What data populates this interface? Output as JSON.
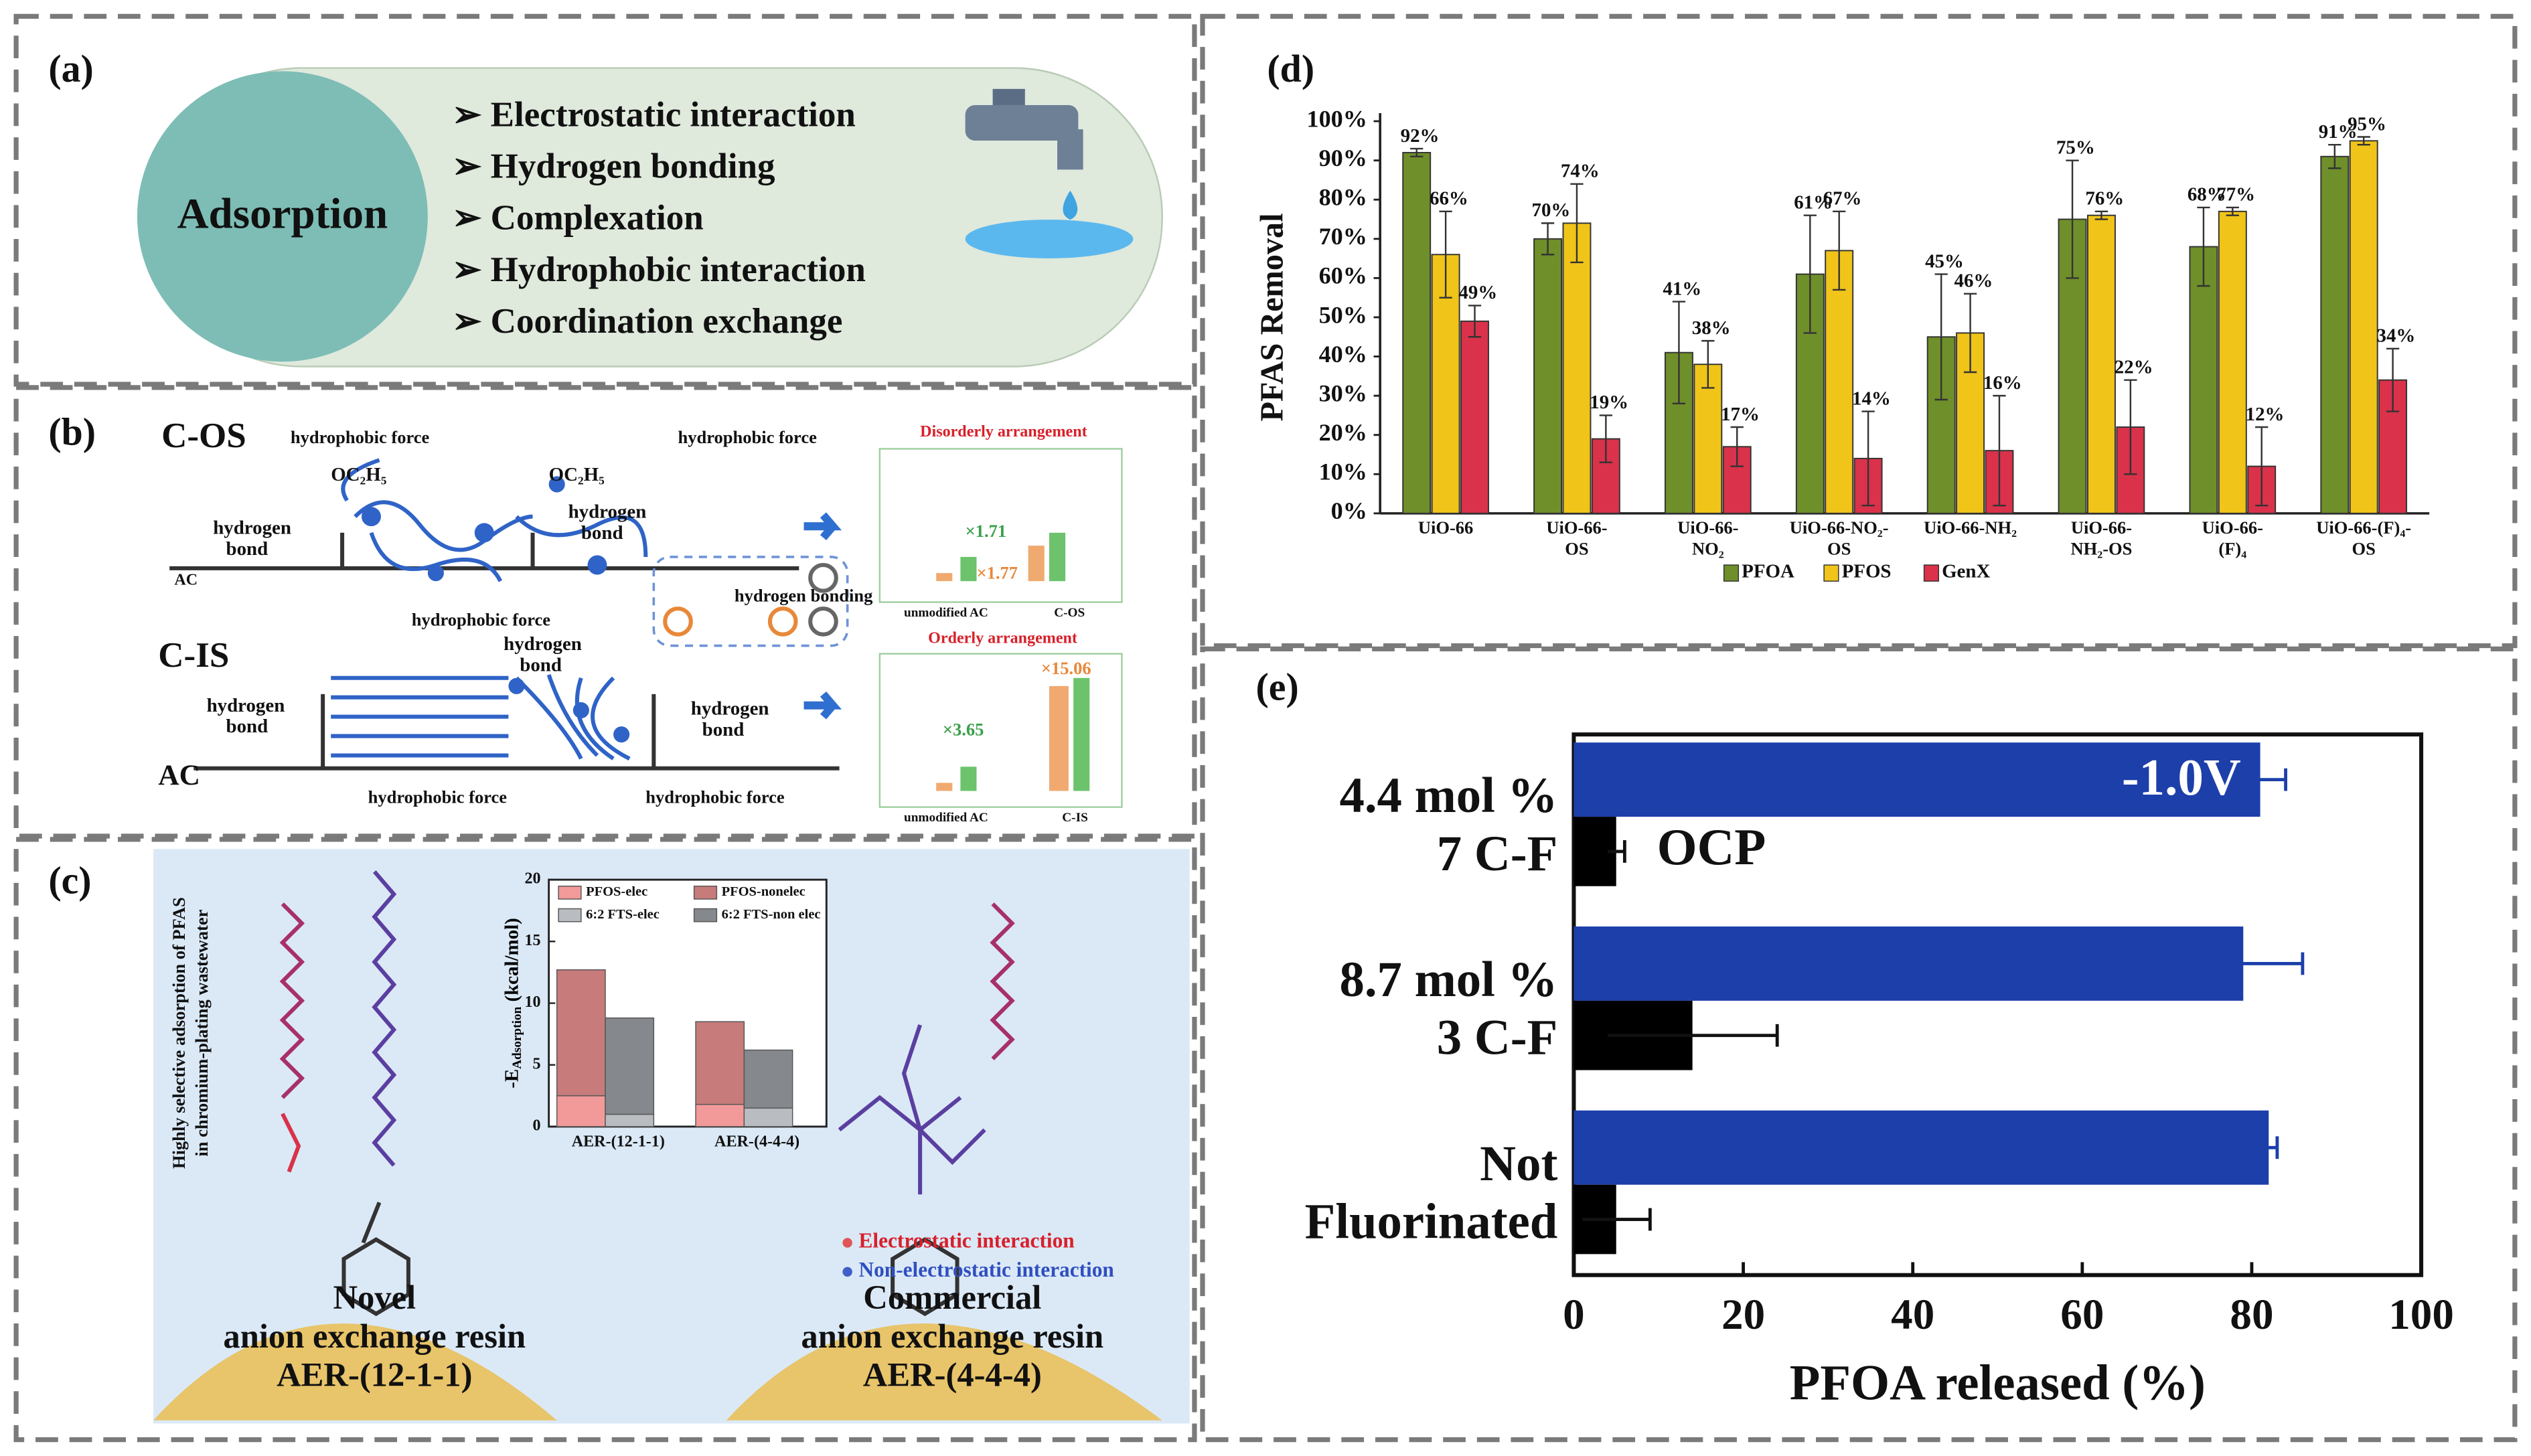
{
  "panel_a": {
    "label": "(a)",
    "center": "Adsorption",
    "items": [
      "➢ Electrostatic interaction",
      "➢ Hydrogen bonding",
      "➢ Complexation",
      "➢ Hydrophobic interaction",
      "➢ Coordination exchange"
    ]
  },
  "panel_b": {
    "label": "(b)",
    "texts": [
      "C-OS",
      "C-IS",
      "hydrophobic force",
      "hydrophobic force",
      "OC₂H₅",
      "OC₂H₅",
      "hydrogen",
      "bond",
      "hydrogen",
      "bond",
      "AC",
      "hydrophobic force",
      "hydrogen bonding",
      "hydrogen",
      "bond",
      "hydrogen",
      "bond",
      "hydrogen",
      "bond",
      "AC",
      "hydrophobic force",
      "hydrophobic force",
      "Disorderly arrangement",
      "Orderly arrangement",
      "×1.71",
      "×1.77",
      "×3.65",
      "×15.06",
      "unmodified AC",
      "C-OS",
      "unmodified AC",
      "C-IS"
    ]
  },
  "panel_c": {
    "label": "(c)",
    "texts": [
      "Highly selective adsorption of PFAS",
      "in chromium-plating wastewater",
      "Electrostatic interaction",
      "Non-electrostatic interaction",
      "Novel",
      "anion exchange resin",
      "AER-(12-1-1)",
      "Commercial",
      "anion exchange resin",
      "AER-(4-4-4)"
    ]
  },
  "chart_data": [
    {
      "type": "stacked_bar",
      "ylabel": "-E",
      "ylabel_sub": "Adsorption",
      "ylabel_unit": " (kcal/mol)",
      "categories": [
        "AER-(12-1-1)",
        "AER-(4-4-4)"
      ],
      "series": [
        {
          "name": "PFOS-elec",
          "color": "#f29a9a",
          "values": [
            2.5,
            1.8
          ]
        },
        {
          "name": "PFOS-nonelec",
          "color": "#c77b7b",
          "values": [
            10.2,
            6.7
          ]
        },
        {
          "name": "6:2 FTS-elec",
          "color": "#b9bcc0",
          "values": [
            1.0,
            1.5
          ]
        },
        {
          "name": "6:2 FTS-non elec",
          "color": "#85888d",
          "values": [
            7.8,
            4.7
          ]
        }
      ],
      "ylim": [
        0,
        20
      ],
      "yticks": [
        0,
        5,
        10,
        15,
        20
      ]
    },
    {
      "type": "bar",
      "label": "(d)",
      "ylabel": "PFAS Removal",
      "categories": [
        [
          "UiO-66"
        ],
        [
          "UiO-66-",
          "OS"
        ],
        [
          "UiO-66-",
          "NO₂"
        ],
        [
          "UiO-66-NO₂-",
          "OS"
        ],
        [
          "UiO-66-NH₂"
        ],
        [
          "UiO-66-",
          "NH₂-OS"
        ],
        [
          "UiO-66-",
          "(F)₄"
        ],
        [
          "UiO-66-(F)₄-",
          "OS"
        ]
      ],
      "series": [
        {
          "name": "PFOA",
          "color": "#6f8f2a",
          "values": [
            92,
            70,
            41,
            61,
            45,
            75,
            68,
            91
          ],
          "errors": [
            1,
            4,
            13,
            15,
            16,
            15,
            10,
            3
          ],
          "value_labels": [
            "92%",
            "70%",
            "41%",
            "61%",
            "45%",
            "75%",
            "68%",
            "91%"
          ]
        },
        {
          "name": "PFOS",
          "color": "#f0c419",
          "values": [
            66,
            74,
            38,
            67,
            46,
            76,
            77,
            95
          ],
          "errors": [
            11,
            10,
            6,
            10,
            10,
            1,
            1,
            1
          ],
          "value_labels": [
            "66%",
            "74%",
            "38%",
            "67%",
            "46%",
            "76%",
            "77%",
            "95%"
          ]
        },
        {
          "name": "GenX",
          "color": "#d9324a",
          "values": [
            49,
            19,
            17,
            14,
            16,
            22,
            12,
            34
          ],
          "errors": [
            4,
            6,
            5,
            12,
            14,
            12,
            10,
            8
          ],
          "value_labels": [
            "49%",
            "19%",
            "17%",
            "14%",
            "16%",
            "22%",
            "12%",
            "34%"
          ]
        }
      ],
      "ylim": [
        0,
        100
      ],
      "yticks": [
        {
          "value": 0,
          "label": "0%"
        },
        {
          "value": 10,
          "label": "10%"
        },
        {
          "value": 20,
          "label": "20%"
        },
        {
          "value": 30,
          "label": "30%"
        },
        {
          "value": 40,
          "label": "40%"
        },
        {
          "value": 50,
          "label": "50%"
        },
        {
          "value": 60,
          "label": "60%"
        },
        {
          "value": 70,
          "label": "70%"
        },
        {
          "value": 80,
          "label": "80%"
        },
        {
          "value": 90,
          "label": "90%"
        },
        {
          "value": 100,
          "label": "100%"
        }
      ]
    },
    {
      "type": "hbar",
      "label": "(e)",
      "xlabel": "PFOA released (%)",
      "categories": [
        [
          "4.4 mol %",
          "7 C-F"
        ],
        [
          "8.7 mol %",
          "3 C-F"
        ],
        [
          "Not",
          "Fluorinated"
        ]
      ],
      "series": [
        {
          "name": "-1.0V",
          "color": "#1c3faa",
          "values": [
            81,
            79,
            82
          ],
          "errors": [
            3,
            7,
            1
          ]
        },
        {
          "name": "OCP",
          "color": "#000000",
          "values": [
            5,
            14,
            5
          ],
          "errors": [
            1,
            10,
            4
          ]
        }
      ],
      "xlim": [
        0,
        100
      ],
      "xticks": [
        0,
        20,
        40,
        60,
        80,
        100
      ]
    }
  ]
}
